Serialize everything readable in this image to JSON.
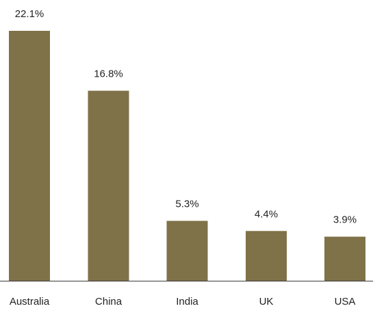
{
  "chart_data": {
    "type": "bar",
    "title": "",
    "xlabel": "",
    "ylabel": "",
    "categories": [
      "Australia",
      "China",
      "India",
      "UK",
      "USA"
    ],
    "values": [
      22.1,
      16.8,
      5.3,
      4.4,
      3.9
    ],
    "value_labels": [
      "22.1%",
      "16.8%",
      "5.3%",
      "4.4%",
      "3.9%"
    ],
    "ylim": [
      0,
      22.1
    ],
    "grid": false,
    "legend": "none",
    "bar_color": "#7f7249",
    "axis_color": "#3a3a3a"
  }
}
